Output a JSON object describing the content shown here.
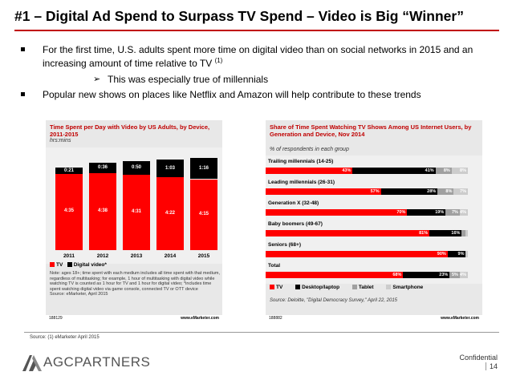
{
  "title": "#1 – Digital Ad Spend to Surpass TV Spend – Video is Big “Winner”",
  "bullets": {
    "b1": "For the first time, U.S. adults spent more time on digital video than on social networks in 2015 and an increasing amount of time relative to TV",
    "b1_sup": "(1)",
    "b1_sub": "This was especially true of millennials",
    "b2": "Popular new shows on places like Netflix and Amazon will help contribute to these trends"
  },
  "chart1": {
    "title": "Time Spent per Day with Video by US Adults, by Device, 2011-2015",
    "subtitle": "hrs:mins",
    "legend": [
      "TV",
      "Digital video*"
    ],
    "note": "Note: ages 18+; time spent with each medium includes all time spent with that medium, regardless of multitasking; for example, 1 hour of multitasking with digital video while watching TV is counted as 1 hour for TV and 1 hour for digital video; *includes time spent watching digital video via game console, connected TV or OTT device",
    "source": "Source: eMarketer, April 2015",
    "foot_left": "188129",
    "foot_right": "www.eMarketer.com"
  },
  "chart2": {
    "title": "Share of Time Spent Watching TV Shows Among US Internet Users, by Generation and Device, Nov 2014",
    "subtitle": "% of respondents in each group",
    "legend": [
      "TV",
      "Desktop/laptop",
      "Tablet",
      "Smartphone"
    ],
    "source": "Source: Deloitte, \"Digital Democracy Survey,\" April 22, 2015",
    "foot_left": "188882",
    "foot_right": "www.eMarketer.com"
  },
  "chart_data": [
    {
      "type": "bar",
      "stacked": true,
      "title": "Time Spent per Day with Video by US Adults, by Device, 2011-2015",
      "ylabel": "hrs:mins",
      "categories": [
        "2011",
        "2012",
        "2013",
        "2014",
        "2015"
      ],
      "series": [
        {
          "name": "TV",
          "values": [
            275,
            278,
            271,
            262,
            255
          ],
          "labels": [
            "4:35",
            "4:38",
            "4:31",
            "4:22",
            "4:15"
          ],
          "color": "#ff0000"
        },
        {
          "name": "Digital video*",
          "values": [
            21,
            36,
            50,
            63,
            76
          ],
          "labels": [
            "0:21",
            "0:36",
            "0:50",
            "1:03",
            "1:16"
          ],
          "color": "#000000"
        }
      ],
      "ylim": [
        0,
        340
      ]
    },
    {
      "type": "bar",
      "orientation": "horizontal",
      "stacked": true,
      "title": "Share of Time Spent Watching TV Shows Among US Internet Users, by Generation and Device, Nov 2014",
      "categories": [
        "Trailing millennials (14-25)",
        "Leading millennials (26-31)",
        "Generation X (32-48)",
        "Baby boomers (49-67)",
        "Seniors (68+)",
        "Total"
      ],
      "series": [
        {
          "name": "TV",
          "values": [
            43,
            57,
            70,
            81,
            90,
            68
          ],
          "color": "#ff0000"
        },
        {
          "name": "Desktop/laptop",
          "values": [
            41,
            28,
            19,
            16,
            9,
            23
          ],
          "color": "#000000"
        },
        {
          "name": "Tablet",
          "values": [
            8,
            8,
            7,
            2,
            0,
            5
          ],
          "color": "#a0a0a0"
        },
        {
          "name": "Smartphone",
          "values": [
            8,
            7,
            4,
            1,
            1,
            4
          ],
          "color": "#cccccc"
        }
      ],
      "xlim": [
        0,
        100
      ]
    }
  ],
  "footer": {
    "source": "Source: (1) eMarketer April 2015",
    "logo": "AGCPARTNERS",
    "confidential": "Confidential",
    "page": "14"
  },
  "colors": {
    "accent": "#c00000",
    "tv": "#ff0000",
    "digital": "#000000"
  }
}
